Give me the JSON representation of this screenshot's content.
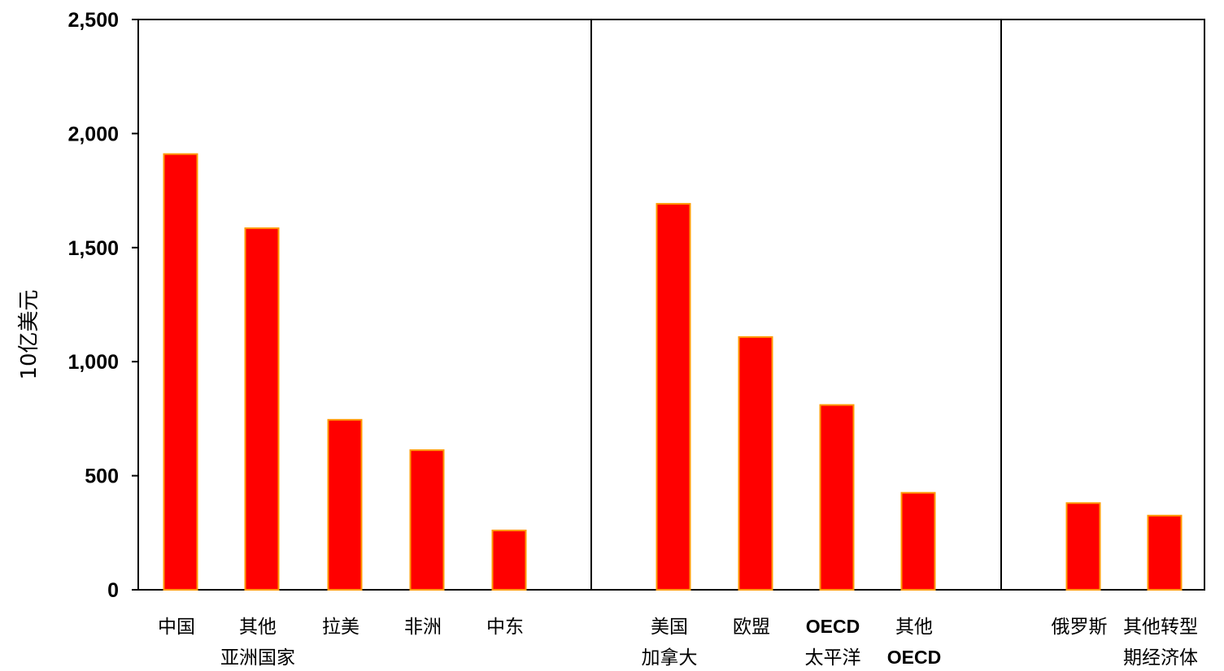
{
  "chart_data": {
    "type": "bar",
    "title": "",
    "xlabel": "",
    "ylabel": "10亿美元",
    "ylim": [
      0,
      2500
    ],
    "yticks": [
      "0",
      "500",
      "1,000",
      "1,500",
      "2,000",
      "2,500"
    ],
    "ytick_values": [
      0,
      500,
      1000,
      1500,
      2000,
      2500
    ],
    "grid": false,
    "bar_color": "#ff0000",
    "bar_edge_color": "#ff9900",
    "categories": [
      {
        "lines": [
          "中国"
        ],
        "bold": [
          false
        ]
      },
      {
        "lines": [
          "其他",
          "亚洲国家"
        ],
        "bold": [
          false,
          false
        ]
      },
      {
        "lines": [
          "拉美"
        ],
        "bold": [
          false
        ]
      },
      {
        "lines": [
          "非洲"
        ],
        "bold": [
          false
        ]
      },
      {
        "lines": [
          "中东"
        ],
        "bold": [
          false
        ]
      },
      {
        "lines": [
          "美国",
          "加拿大"
        ],
        "bold": [
          false,
          false
        ]
      },
      {
        "lines": [
          "欧盟"
        ],
        "bold": [
          false
        ]
      },
      {
        "lines": [
          "OECD",
          "太平洋"
        ],
        "bold": [
          true,
          false
        ]
      },
      {
        "lines": [
          "其他",
          "OECD"
        ],
        "bold": [
          false,
          true
        ]
      },
      {
        "lines": [
          "俄罗斯"
        ],
        "bold": [
          false
        ]
      },
      {
        "lines": [
          "其他转型",
          "期经济体"
        ],
        "bold": [
          false,
          false
        ]
      }
    ],
    "values": [
      1910,
      1585,
      745,
      612,
      260,
      1692,
      1108,
      810,
      425,
      380,
      325
    ],
    "groups": [
      [
        0,
        1,
        2,
        3,
        4
      ],
      [
        5,
        6,
        7,
        8
      ],
      [
        9,
        10
      ]
    ]
  }
}
